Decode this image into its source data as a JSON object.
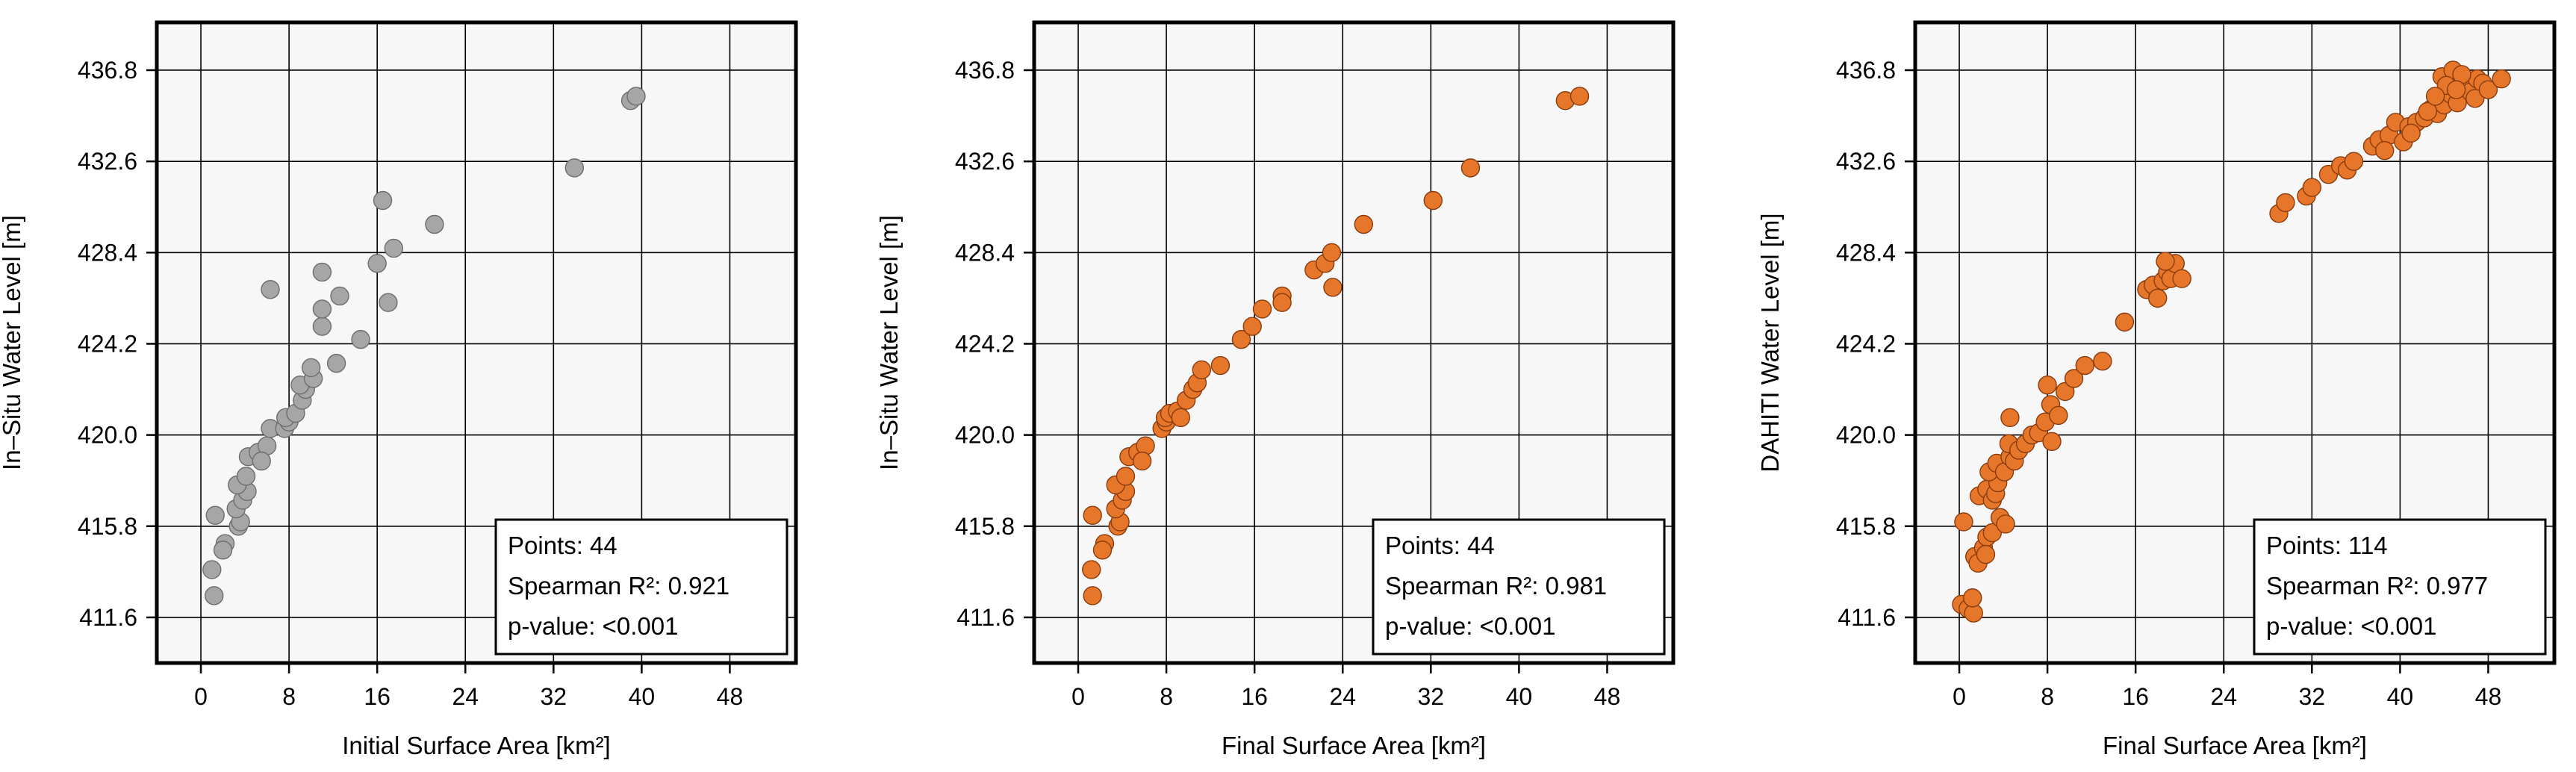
{
  "figure": {
    "background_color": "#ffffff",
    "panel_color": "#f7f7f7",
    "grid_color": "#000000",
    "stat_labels": {
      "points": "Points:",
      "spearman": "Spearman R²:",
      "pvalue": "p-value:"
    }
  },
  "chart_data": [
    {
      "type": "scatter",
      "title": "",
      "xlabel": "Initial Surface Area [km²]",
      "ylabel": "In–Situ Water Level [m]",
      "xlim": [
        -4,
        54
      ],
      "ylim": [
        409.5,
        439.0
      ],
      "xticks": [
        0,
        8,
        16,
        24,
        32,
        40,
        48
      ],
      "yticks": [
        411.6,
        415.8,
        420.0,
        424.2,
        428.4,
        432.6,
        436.8
      ],
      "ytick_labels": [
        "411.6",
        "415.8",
        "420.0",
        "424.2",
        "428.4",
        "432.6",
        "436.8"
      ],
      "grid": true,
      "marker_color": "#a6a6a6",
      "marker_edge": "#6e6e6e",
      "stats": {
        "points": "44",
        "spearman_r2": "0.921",
        "p_value": "<0.001"
      },
      "series": [
        {
          "points": [
            [
              1.2,
              412.6
            ],
            [
              1.0,
              413.8
            ],
            [
              2.2,
              415.0
            ],
            [
              2.0,
              414.7
            ],
            [
              1.3,
              416.3
            ],
            [
              3.4,
              415.8
            ],
            [
              3.6,
              416.0
            ],
            [
              3.2,
              416.6
            ],
            [
              3.8,
              417.0
            ],
            [
              4.2,
              417.4
            ],
            [
              3.3,
              417.7
            ],
            [
              4.1,
              418.1
            ],
            [
              4.3,
              419.0
            ],
            [
              5.2,
              419.2
            ],
            [
              6.0,
              419.5
            ],
            [
              5.5,
              418.8
            ],
            [
              6.3,
              420.3
            ],
            [
              7.6,
              420.3
            ],
            [
              8.0,
              420.6
            ],
            [
              7.7,
              420.8
            ],
            [
              8.6,
              421.0
            ],
            [
              9.2,
              421.6
            ],
            [
              9.5,
              422.1
            ],
            [
              9.0,
              422.3
            ],
            [
              10.2,
              422.6
            ],
            [
              10.0,
              423.1
            ],
            [
              12.3,
              423.3
            ],
            [
              14.5,
              424.4
            ],
            [
              11.0,
              425.0
            ],
            [
              11.0,
              425.8
            ],
            [
              6.3,
              426.7
            ],
            [
              12.6,
              426.4
            ],
            [
              11.0,
              427.5
            ],
            [
              17.0,
              426.1
            ],
            [
              16.0,
              427.9
            ],
            [
              17.5,
              428.6
            ],
            [
              16.5,
              430.8
            ],
            [
              21.2,
              429.7
            ],
            [
              33.9,
              432.3
            ],
            [
              39.0,
              435.4
            ],
            [
              39.5,
              435.6
            ]
          ]
        }
      ]
    },
    {
      "type": "scatter",
      "title": "",
      "xlabel": "Final Surface Area [km²]",
      "ylabel": "In–Situ Water Level [m]",
      "xlim": [
        -4,
        54
      ],
      "ylim": [
        409.5,
        439.0
      ],
      "xticks": [
        0,
        8,
        16,
        24,
        32,
        40,
        48
      ],
      "yticks": [
        411.6,
        415.8,
        420.0,
        424.2,
        428.4,
        432.6,
        436.8
      ],
      "ytick_labels": [
        "411.6",
        "415.8",
        "420.0",
        "424.2",
        "428.4",
        "432.6",
        "436.8"
      ],
      "grid": true,
      "marker_color": "#e6762a",
      "marker_edge": "#8a3c0e",
      "stats": {
        "points": "44",
        "spearman_r2": "0.981",
        "p_value": "<0.001"
      },
      "series": [
        {
          "points": [
            [
              1.3,
              412.6
            ],
            [
              1.2,
              413.8
            ],
            [
              2.4,
              415.0
            ],
            [
              2.2,
              414.7
            ],
            [
              1.3,
              416.3
            ],
            [
              3.6,
              415.8
            ],
            [
              3.8,
              416.0
            ],
            [
              3.4,
              416.6
            ],
            [
              4.0,
              417.0
            ],
            [
              4.3,
              417.4
            ],
            [
              3.4,
              417.7
            ],
            [
              4.3,
              418.1
            ],
            [
              4.6,
              419.0
            ],
            [
              5.4,
              419.2
            ],
            [
              6.1,
              419.5
            ],
            [
              5.8,
              418.8
            ],
            [
              7.6,
              420.3
            ],
            [
              8.0,
              420.6
            ],
            [
              7.9,
              420.8
            ],
            [
              8.3,
              421.0
            ],
            [
              9.0,
              421.1
            ],
            [
              9.3,
              420.8
            ],
            [
              9.8,
              421.6
            ],
            [
              10.4,
              422.1
            ],
            [
              10.8,
              422.4
            ],
            [
              11.2,
              423.0
            ],
            [
              12.9,
              423.2
            ],
            [
              14.8,
              424.4
            ],
            [
              15.8,
              425.0
            ],
            [
              16.7,
              425.8
            ],
            [
              18.5,
              426.4
            ],
            [
              18.5,
              426.1
            ],
            [
              21.4,
              427.6
            ],
            [
              22.4,
              427.9
            ],
            [
              23.0,
              428.4
            ],
            [
              23.1,
              426.8
            ],
            [
              25.9,
              429.7
            ],
            [
              32.2,
              430.8
            ],
            [
              35.6,
              432.3
            ],
            [
              44.2,
              435.4
            ],
            [
              45.5,
              435.6
            ]
          ]
        }
      ]
    },
    {
      "type": "scatter",
      "title": "",
      "xlabel": "Final Surface Area [km²]",
      "ylabel": "DAHITI Water Level [m]",
      "xlim": [
        -4,
        54
      ],
      "ylim": [
        409.5,
        439.0
      ],
      "xticks": [
        0,
        8,
        16,
        24,
        32,
        40,
        48
      ],
      "yticks": [
        411.6,
        415.8,
        420.0,
        424.2,
        428.4,
        432.6,
        436.8
      ],
      "ytick_labels": [
        "411.6",
        "415.8",
        "420.0",
        "424.2",
        "428.4",
        "432.6",
        "436.8"
      ],
      "grid": true,
      "marker_color": "#e6762a",
      "marker_edge": "#8a3c0e",
      "stats": {
        "points": "114",
        "spearman_r2": "0.977",
        "p_value": "<0.001"
      },
      "series": [
        {
          "points": [
            [
              0.2,
              412.2
            ],
            [
              0.8,
              412.0
            ],
            [
              1.3,
              411.8
            ],
            [
              1.2,
              412.5
            ],
            [
              0.4,
              416.0
            ],
            [
              1.4,
              414.4
            ],
            [
              1.7,
              414.1
            ],
            [
              2.2,
              414.8
            ],
            [
              2.5,
              415.3
            ],
            [
              2.4,
              414.5
            ],
            [
              3.0,
              415.5
            ],
            [
              1.8,
              417.2
            ],
            [
              2.5,
              417.5
            ],
            [
              3.0,
              417.0
            ],
            [
              3.3,
              417.3
            ],
            [
              3.5,
              417.8
            ],
            [
              2.7,
              418.3
            ],
            [
              3.4,
              418.7
            ],
            [
              4.1,
              418.3
            ],
            [
              4.6,
              419.0
            ],
            [
              3.7,
              416.2
            ],
            [
              4.2,
              415.9
            ],
            [
              5.0,
              418.8
            ],
            [
              4.5,
              419.6
            ],
            [
              5.4,
              419.3
            ],
            [
              6.0,
              419.6
            ],
            [
              6.6,
              420.0
            ],
            [
              7.2,
              420.1
            ],
            [
              7.8,
              420.6
            ],
            [
              8.0,
              422.3
            ],
            [
              8.3,
              421.4
            ],
            [
              9.6,
              422.0
            ],
            [
              10.4,
              422.6
            ],
            [
              11.4,
              423.2
            ],
            [
              13.0,
              423.4
            ],
            [
              4.6,
              420.8
            ],
            [
              8.4,
              419.7
            ],
            [
              9.0,
              420.9
            ],
            [
              15.0,
              425.2
            ],
            [
              17.0,
              426.7
            ],
            [
              17.6,
              426.9
            ],
            [
              18.0,
              426.3
            ],
            [
              18.5,
              427.1
            ],
            [
              18.9,
              427.5
            ],
            [
              19.2,
              427.2
            ],
            [
              19.6,
              427.9
            ],
            [
              18.7,
              428.0
            ],
            [
              20.2,
              427.2
            ],
            [
              29.0,
              430.2
            ],
            [
              29.6,
              430.7
            ],
            [
              31.5,
              431.0
            ],
            [
              32.0,
              431.4
            ],
            [
              33.5,
              432.0
            ],
            [
              34.6,
              432.4
            ],
            [
              35.2,
              432.2
            ],
            [
              35.8,
              432.6
            ],
            [
              37.5,
              433.3
            ],
            [
              38.1,
              433.6
            ],
            [
              39.0,
              433.8
            ],
            [
              39.6,
              434.4
            ],
            [
              40.3,
              433.5
            ],
            [
              40.8,
              434.2
            ],
            [
              41.5,
              434.4
            ],
            [
              42.2,
              434.6
            ],
            [
              42.8,
              435.0
            ],
            [
              43.4,
              434.8
            ],
            [
              44.0,
              435.2
            ],
            [
              44.6,
              435.7
            ],
            [
              45.2,
              435.3
            ],
            [
              45.8,
              436.0
            ],
            [
              46.4,
              435.8
            ],
            [
              47.0,
              436.4
            ],
            [
              47.5,
              436.2
            ],
            [
              43.8,
              436.5
            ],
            [
              44.8,
              436.8
            ],
            [
              45.6,
              436.6
            ],
            [
              46.8,
              435.5
            ],
            [
              48.0,
              435.9
            ],
            [
              49.2,
              436.4
            ],
            [
              41.0,
              433.9
            ],
            [
              42.5,
              434.9
            ],
            [
              44.2,
              436.1
            ],
            [
              45.1,
              435.9
            ],
            [
              43.2,
              435.6
            ],
            [
              38.6,
              433.1
            ]
          ]
        }
      ]
    }
  ]
}
